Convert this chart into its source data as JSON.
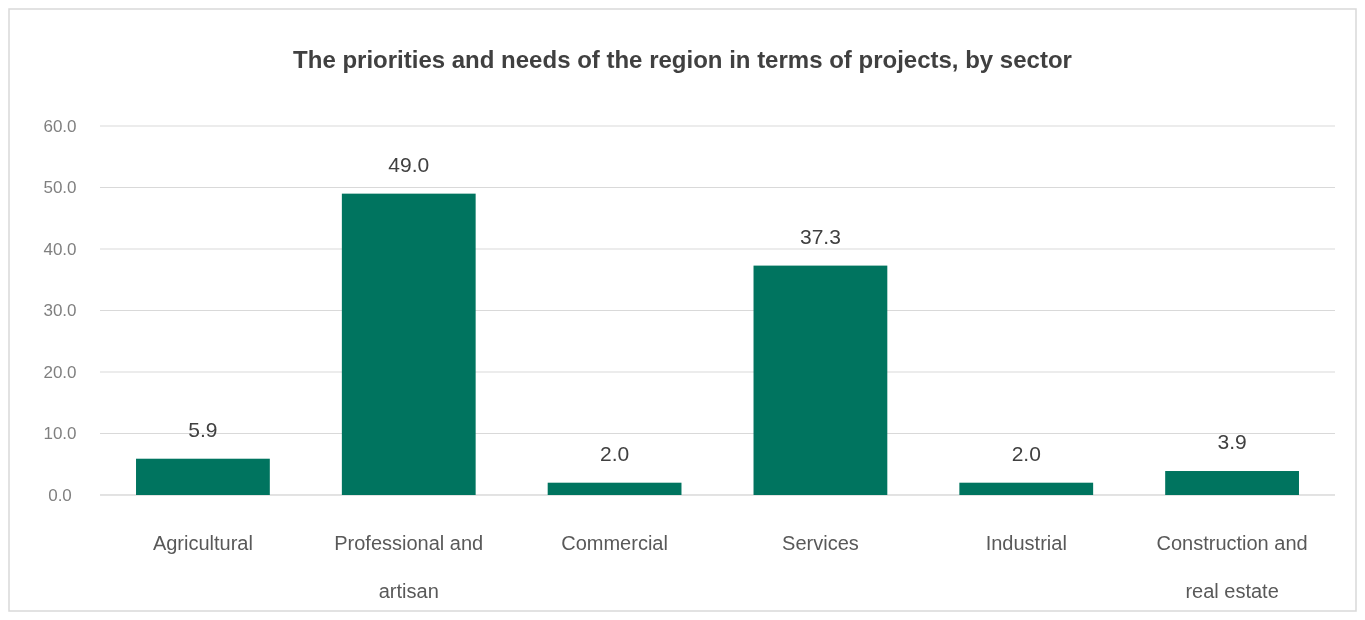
{
  "chart_data": {
    "type": "bar",
    "title": "The priorities and needs of the region in terms of projects, by sector",
    "categories": [
      "Agricultural",
      "Professional and artisan",
      "Commercial",
      "Services",
      "Industrial",
      "Construction and real estate"
    ],
    "values": [
      5.9,
      49.0,
      2.0,
      37.3,
      2.0,
      3.9
    ],
    "value_labels": [
      "5.9",
      "49.0",
      "2.0",
      "37.3",
      "2.0",
      "3.9"
    ],
    "color": "#00745f",
    "ylim": [
      0,
      60
    ],
    "yticks": [
      {
        "value": 0,
        "label": "0.0"
      },
      {
        "value": 10,
        "label": "10.0"
      },
      {
        "value": 20,
        "label": "20.0"
      },
      {
        "value": 30,
        "label": "30.0"
      },
      {
        "value": 40,
        "label": "40.0"
      },
      {
        "value": 50,
        "label": "50.0"
      },
      {
        "value": 60,
        "label": "60.0"
      }
    ],
    "grid": "y"
  }
}
